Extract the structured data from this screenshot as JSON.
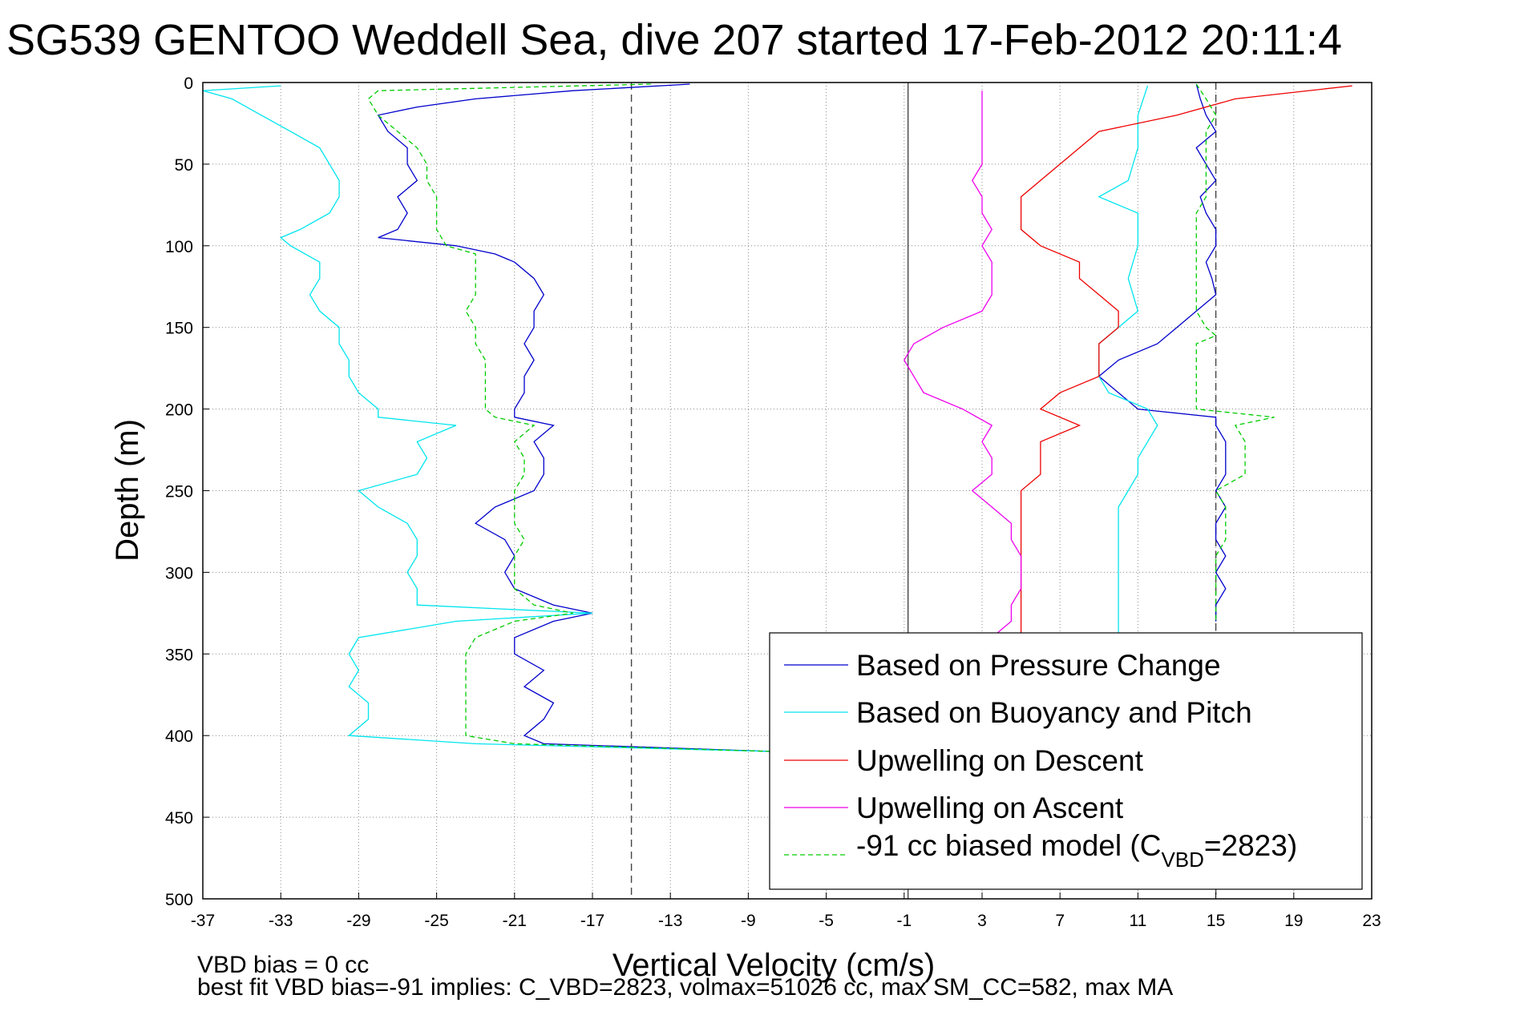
{
  "chart_data": {
    "type": "line",
    "title": "SG539 GENTOO Weddell Sea, dive 207 started 17-Feb-2012 20:11:4",
    "xlabel": "Vertical Velocity (cm/s)",
    "ylabel": "Depth (m)",
    "xlim": [
      -37,
      23
    ],
    "ylim": [
      500,
      0
    ],
    "y_reversed": true,
    "grid": true,
    "xticks": [
      "-37",
      "-33",
      "-29",
      "-25",
      "-21",
      "-17",
      "-13",
      "-9",
      "-5",
      "-1",
      "3",
      "7",
      "11",
      "15",
      "19",
      "23"
    ],
    "yticks": [
      "0",
      "50",
      "100",
      "150",
      "200",
      "250",
      "300",
      "350",
      "400",
      "450",
      "500"
    ],
    "legend": {
      "position": "bottom-right",
      "entries": [
        {
          "label": "Based on Pressure Change",
          "color": "#0000cc",
          "style": "solid"
        },
        {
          "label": "Based on Buoyancy and Pitch",
          "color": "#00e5ee",
          "style": "solid"
        },
        {
          "label": "Upwelling on Descent",
          "color": "#ee0000",
          "style": "solid"
        },
        {
          "label": "Upwelling on Ascent",
          "color": "#ee00ee",
          "style": "solid"
        },
        {
          "label": "-91 cc biased model (C",
          "subscript": "VBD",
          "suffix": "=2823)",
          "color": "#00cc00",
          "style": "dashed"
        }
      ]
    },
    "reference_lines": [
      {
        "x": -15,
        "style": "dashed",
        "color": "#444444"
      },
      {
        "x": -0.8,
        "style": "solid",
        "color": "#444444"
      },
      {
        "x": 15,
        "style": "dashed",
        "color": "#444444"
      }
    ],
    "series": [
      {
        "name": "Based on Pressure Change",
        "color": "#0000cc",
        "style": "solid",
        "depth": [
          1,
          5,
          10,
          15,
          20,
          30,
          40,
          50,
          60,
          70,
          80,
          90,
          95,
          100,
          105,
          110,
          120,
          130,
          140,
          150,
          160,
          170,
          180,
          190,
          200,
          205,
          210,
          220,
          230,
          240,
          250,
          260,
          270,
          280,
          290,
          300,
          310,
          320,
          325,
          330,
          340,
          350,
          360,
          370,
          380,
          390,
          400,
          405,
          410,
          1,
          10,
          20,
          30,
          40,
          50,
          60,
          70,
          80,
          90,
          100,
          110,
          120,
          130,
          140,
          150,
          160,
          170,
          180,
          190,
          200,
          205,
          210,
          220,
          230,
          240,
          250,
          260,
          270,
          280,
          290,
          300,
          310,
          320,
          330
        ],
        "velocity": [
          -12,
          -18,
          -23,
          -26,
          -28,
          -27.5,
          -26.5,
          -26.5,
          -26,
          -27,
          -26.5,
          -27,
          -28,
          -24,
          -22,
          -21,
          -20,
          -19.5,
          -20,
          -20,
          -20.5,
          -20,
          -20.5,
          -20.5,
          -21,
          -21,
          -19,
          -20,
          -19.5,
          -19.5,
          -20,
          -22,
          -23,
          -21.5,
          -21,
          -21.5,
          -21,
          -19,
          -17,
          -19,
          -21,
          -21,
          -19.5,
          -20.5,
          -19,
          -19.5,
          -20.5,
          -19.5,
          -7,
          14,
          14.2,
          14.5,
          15,
          14,
          14.5,
          15,
          14.2,
          14.5,
          15,
          15,
          14.5,
          14.8,
          15,
          14,
          13,
          12,
          10,
          9,
          10,
          11,
          15,
          15,
          15.5,
          15.5,
          15.5,
          15,
          15.5,
          15,
          15,
          15.5,
          15,
          15.5,
          15,
          15
        ]
      },
      {
        "name": "Based on Buoyancy and Pitch",
        "color": "#00e5ee",
        "style": "solid",
        "depth": [
          2,
          5,
          10,
          20,
          30,
          40,
          50,
          60,
          70,
          80,
          90,
          95,
          100,
          110,
          120,
          130,
          140,
          150,
          160,
          170,
          180,
          190,
          200,
          205,
          210,
          220,
          230,
          240,
          250,
          260,
          270,
          280,
          290,
          300,
          310,
          320,
          325,
          330,
          340,
          350,
          360,
          370,
          380,
          390,
          400,
          405,
          410,
          2,
          20,
          40,
          60,
          70,
          80,
          100,
          120,
          140,
          150,
          160,
          170,
          180,
          190,
          200,
          210,
          220,
          230,
          240,
          250,
          260,
          280,
          300,
          320,
          340
        ],
        "velocity": [
          -33,
          -37,
          -35.5,
          -34,
          -32.5,
          -31,
          -30.5,
          -30,
          -30,
          -30.5,
          -32,
          -33,
          -32.5,
          -31,
          -31,
          -31.5,
          -31,
          -30,
          -30,
          -29.5,
          -29.5,
          -29,
          -28,
          -28,
          -24,
          -26,
          -25.5,
          -26,
          -29,
          -28,
          -26.5,
          -26,
          -26,
          -26.5,
          -26,
          -26,
          -17,
          -24,
          -29,
          -29.5,
          -29,
          -29.5,
          -28.5,
          -28.5,
          -29.5,
          -23,
          -7,
          11.5,
          11,
          11,
          10.5,
          9,
          11,
          11,
          10.5,
          11,
          10,
          9,
          9,
          9,
          9.5,
          11.5,
          12,
          11.5,
          11,
          11,
          10.5,
          10,
          10,
          10,
          10,
          10
        ]
      },
      {
        "name": "Upwelling on Descent",
        "color": "#ee0000",
        "style": "solid",
        "depth": [
          2,
          10,
          20,
          30,
          40,
          50,
          60,
          70,
          80,
          90,
          100,
          110,
          120,
          130,
          140,
          150,
          160,
          170,
          180,
          190,
          200,
          210,
          220,
          230,
          240,
          250,
          260,
          270,
          280,
          290,
          300,
          310,
          320,
          330,
          340
        ],
        "velocity": [
          22,
          16,
          13,
          9,
          8,
          7,
          6,
          5,
          5,
          5,
          6,
          8,
          8,
          9,
          10,
          10,
          9,
          9,
          9,
          7,
          6,
          8,
          6,
          6,
          6,
          5,
          5,
          5,
          5,
          5,
          5,
          5,
          5,
          5,
          5
        ]
      },
      {
        "name": "Upwelling on Ascent",
        "color": "#ee00ee",
        "style": "solid",
        "depth": [
          5,
          10,
          20,
          30,
          40,
          50,
          60,
          70,
          80,
          90,
          100,
          110,
          120,
          130,
          140,
          150,
          160,
          170,
          180,
          190,
          200,
          210,
          220,
          230,
          240,
          250,
          260,
          270,
          280,
          290,
          300,
          310,
          320,
          330,
          340
        ],
        "velocity": [
          3,
          3,
          3,
          3,
          3,
          3,
          2.5,
          3,
          3,
          3.5,
          3,
          3.5,
          3.5,
          3.5,
          3,
          1,
          -0.5,
          -1,
          -0.5,
          0,
          2,
          3.5,
          3,
          3.5,
          3.5,
          2.5,
          3.5,
          4.5,
          4.5,
          5,
          5,
          5,
          4.5,
          4.5,
          3.5
        ]
      },
      {
        "name": "-91 cc biased model (CVBD=2823)",
        "color": "#00cc00",
        "style": "dashed",
        "depth": [
          1,
          5,
          10,
          20,
          30,
          40,
          50,
          60,
          70,
          80,
          90,
          100,
          105,
          110,
          120,
          130,
          140,
          150,
          160,
          170,
          180,
          190,
          200,
          205,
          210,
          220,
          230,
          240,
          250,
          260,
          270,
          280,
          290,
          300,
          310,
          320,
          325,
          330,
          340,
          350,
          360,
          370,
          380,
          390,
          400,
          405,
          410,
          1,
          10,
          20,
          30,
          40,
          50,
          60,
          70,
          80,
          90,
          100,
          110,
          120,
          130,
          140,
          150,
          155,
          160,
          170,
          180,
          190,
          200,
          205,
          210,
          220,
          230,
          240,
          250,
          260,
          270,
          280,
          290,
          300,
          310,
          320,
          330
        ],
        "velocity": [
          -14,
          -28,
          -28.5,
          -28,
          -27,
          -26,
          -25.5,
          -25.5,
          -25,
          -25,
          -25,
          -24.5,
          -23,
          -23,
          -23,
          -23,
          -23.5,
          -23,
          -23,
          -22.5,
          -22.5,
          -22.5,
          -22.5,
          -22,
          -20,
          -21,
          -20.5,
          -20.5,
          -21,
          -21,
          -21,
          -20.5,
          -21,
          -21,
          -21,
          -20,
          -18,
          -21,
          -23,
          -23.5,
          -23.5,
          -23.5,
          -23.5,
          -23.5,
          -23.5,
          -21,
          -7,
          14,
          14.5,
          15,
          14.5,
          14.5,
          14.5,
          14.5,
          14.5,
          14,
          14,
          14,
          14,
          14,
          14,
          14,
          14.5,
          15,
          14,
          14,
          14,
          14,
          14,
          18,
          16,
          16.5,
          16.5,
          16.5,
          15,
          15.5,
          15.5,
          15.5,
          15,
          15,
          15,
          15,
          15
        ]
      }
    ]
  },
  "footer": {
    "line1": "VBD bias = 0 cc",
    "line2": "best fit VBD bias=-91 implies: C_VBD=2823, volmax=51026 cc, max SM_CC=582, max MA"
  }
}
